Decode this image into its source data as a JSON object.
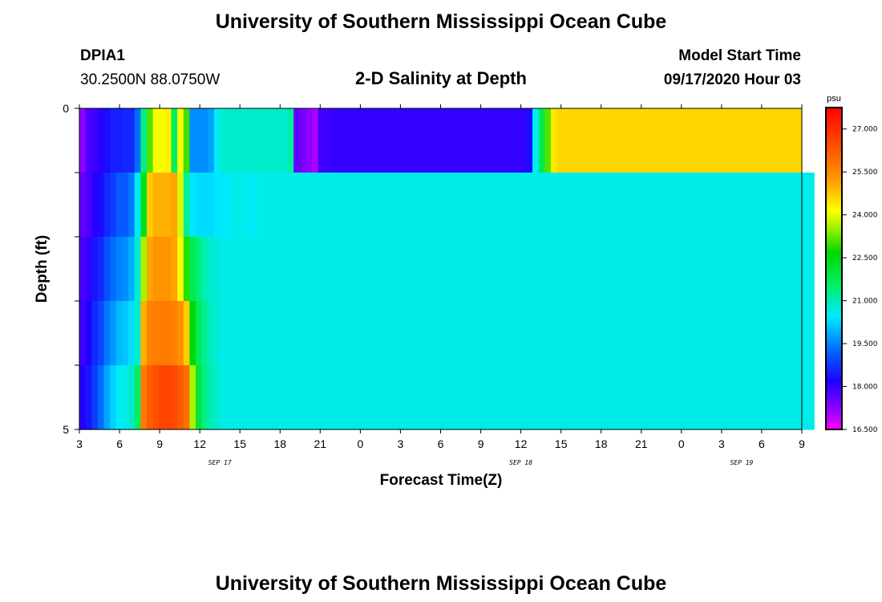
{
  "header": {
    "title": "University of Southern Mississippi Ocean Cube",
    "station_id": "DPIA1",
    "station_location": "30.2500N 88.0750W",
    "subtitle": "2-D Salinity at Depth",
    "model_start_label": "Model Start Time",
    "model_start_value": "09/17/2020 Hour 03"
  },
  "footer": {
    "title": "University of Southern Mississippi Ocean Cube"
  },
  "chart_data": {
    "type": "heatmap",
    "title": "2-D Salinity at Depth",
    "xlabel": "Forecast Time(Z)",
    "ylabel": "Depth (ft)",
    "x_hours_from_start": [
      0,
      54
    ],
    "x_tick_labels": [
      "3",
      "6",
      "9",
      "12",
      "15",
      "18",
      "21",
      "0",
      "3",
      "6",
      "9",
      "12",
      "15",
      "18",
      "21",
      "0",
      "3",
      "6",
      "9"
    ],
    "date_labels": [
      {
        "text": "SEP 17",
        "at_hour": 10.5
      },
      {
        "text": "SEP 18",
        "at_hour": 33
      },
      {
        "text": "SEP 19",
        "at_hour": 49.5
      }
    ],
    "y_tick_labels": [
      "0",
      "5"
    ],
    "ylim": [
      0,
      5
    ],
    "depth_levels": 5,
    "colorbar": {
      "unit": "psu",
      "min": 16.5,
      "max": 27.75,
      "ticks": [
        "27.000",
        "25.500",
        "24.000",
        "22.500",
        "21.000",
        "19.500",
        "18.000",
        "16.500"
      ]
    },
    "salinity_psu": [
      [
        17.2,
        17.8,
        17.9,
        18.1,
        18.3,
        18.5,
        18.5,
        18.6,
        18.6,
        19.3,
        21.3,
        23.1,
        24.1,
        24.1,
        24.3,
        21.6,
        24.1,
        23.0,
        19.6,
        19.6,
        19.6,
        19.8,
        20.5,
        20.8,
        20.8,
        20.8,
        20.8,
        20.8,
        20.8,
        20.8,
        20.8,
        20.8,
        20.8,
        20.8,
        21.1,
        17.6,
        17.4,
        17.2,
        17.0,
        17.9,
        17.9,
        18.0,
        18.0,
        18.0,
        18.0,
        18.0,
        18.0,
        18.0,
        18.0,
        18.0,
        18.0,
        18.0,
        18.0,
        18.0,
        18.0,
        18.0,
        18.0,
        18.0,
        18.0,
        18.0,
        18.0,
        18.0,
        18.0,
        18.0,
        18.0,
        18.0,
        18.0,
        18.0,
        18.0,
        18.0,
        18.0,
        18.0,
        18.0,
        18.3,
        20.5,
        21.8,
        23.1,
        24.4,
        24.6,
        24.6,
        24.6,
        24.6,
        24.6,
        24.6,
        24.6,
        24.6,
        24.6,
        24.6,
        24.6,
        24.6,
        24.6,
        24.6,
        24.6,
        24.6,
        24.6,
        24.6,
        24.6,
        24.6,
        24.6,
        24.6,
        24.6,
        24.6,
        24.6,
        24.6,
        24.6,
        24.6,
        24.6,
        24.6,
        24.6,
        24.6,
        24.6,
        24.6,
        24.6,
        24.6,
        24.6,
        24.6,
        24.6,
        24.6
      ],
      [
        17.6,
        17.8,
        18.1,
        18.3,
        18.6,
        18.8,
        19.1,
        19.1,
        19.4,
        20.5,
        22.3,
        24.7,
        25.0,
        25.0,
        25.0,
        25.1,
        23.9,
        21.2,
        20.4,
        20.3,
        20.3,
        20.3,
        20.4,
        20.4,
        20.5,
        20.6,
        20.6,
        20.5,
        20.5,
        20.6,
        20.6,
        20.6,
        20.6,
        20.6,
        20.6,
        20.6,
        20.6,
        20.6,
        20.6,
        20.6,
        20.6,
        20.6,
        20.6,
        20.6,
        20.6,
        20.6,
        20.6,
        20.6,
        20.6,
        20.6,
        20.6,
        20.6,
        20.6,
        20.6,
        20.6,
        20.6,
        20.6,
        20.6,
        20.6,
        20.6,
        20.6,
        20.6,
        20.6,
        20.6,
        20.6,
        20.6,
        20.6,
        20.6,
        20.6,
        20.6,
        20.6,
        20.6,
        20.6,
        20.6,
        20.6,
        20.6,
        20.6,
        20.6,
        20.6,
        20.6,
        20.6,
        20.6,
        20.6,
        20.6,
        20.6,
        20.6,
        20.6,
        20.6,
        20.6,
        20.6,
        20.6,
        20.6,
        20.6,
        20.6,
        20.6,
        20.6,
        20.6,
        20.6,
        20.6,
        20.6,
        20.6,
        20.6,
        20.6,
        20.6,
        20.6,
        20.6,
        20.6,
        20.6,
        20.6,
        20.6,
        20.6,
        20.6,
        20.6,
        20.6,
        20.6,
        20.6,
        20.6,
        20.6,
        20.6,
        20.6
      ],
      [
        17.8,
        18.0,
        18.4,
        18.6,
        19.0,
        19.3,
        19.5,
        19.6,
        19.9,
        20.7,
        23.6,
        25.1,
        25.3,
        25.3,
        25.3,
        25.1,
        24.1,
        22.9,
        21.8,
        21.4,
        21.0,
        20.8,
        20.7,
        20.6,
        20.6,
        20.6,
        20.6,
        20.6,
        20.6,
        20.6,
        20.6,
        20.6,
        20.6,
        20.6,
        20.6,
        20.6,
        20.6,
        20.6,
        20.6,
        20.6,
        20.6,
        20.6,
        20.6,
        20.6,
        20.6,
        20.6,
        20.6,
        20.6,
        20.6,
        20.6,
        20.6,
        20.6,
        20.6,
        20.6,
        20.6,
        20.6,
        20.6,
        20.6,
        20.6,
        20.6,
        20.6,
        20.6,
        20.6,
        20.6,
        20.6,
        20.6,
        20.6,
        20.6,
        20.6,
        20.6,
        20.6,
        20.6,
        20.6,
        20.6,
        20.6,
        20.6,
        20.6,
        20.6,
        20.6,
        20.6,
        20.6,
        20.6,
        20.6,
        20.6,
        20.6,
        20.6,
        20.6,
        20.6,
        20.6,
        20.6,
        20.6,
        20.6,
        20.6,
        20.6,
        20.6,
        20.6,
        20.6,
        20.6,
        20.6,
        20.6,
        20.6,
        20.6,
        20.6,
        20.6,
        20.6,
        20.6,
        20.6,
        20.6,
        20.6,
        20.6,
        20.6,
        20.6,
        20.6,
        20.6,
        20.6,
        20.6,
        20.6,
        20.6,
        20.6,
        20.6
      ],
      [
        17.9,
        18.2,
        18.6,
        18.9,
        19.4,
        19.7,
        20.0,
        20.1,
        20.3,
        20.8,
        25.0,
        25.6,
        25.7,
        25.7,
        25.7,
        25.6,
        25.4,
        24.7,
        22.6,
        21.7,
        21.2,
        20.9,
        20.7,
        20.6,
        20.6,
        20.6,
        20.6,
        20.6,
        20.6,
        20.6,
        20.6,
        20.6,
        20.6,
        20.6,
        20.6,
        20.6,
        20.6,
        20.6,
        20.6,
        20.6,
        20.6,
        20.6,
        20.6,
        20.6,
        20.6,
        20.6,
        20.6,
        20.6,
        20.6,
        20.6,
        20.6,
        20.6,
        20.6,
        20.6,
        20.6,
        20.6,
        20.6,
        20.6,
        20.6,
        20.6,
        20.6,
        20.6,
        20.6,
        20.6,
        20.6,
        20.6,
        20.6,
        20.6,
        20.6,
        20.6,
        20.6,
        20.6,
        20.6,
        20.6,
        20.6,
        20.6,
        20.6,
        20.6,
        20.6,
        20.6,
        20.6,
        20.6,
        20.6,
        20.6,
        20.6,
        20.6,
        20.6,
        20.6,
        20.6,
        20.6,
        20.6,
        20.6,
        20.6,
        20.6,
        20.6,
        20.6,
        20.6,
        20.6,
        20.6,
        20.6,
        20.6,
        20.6,
        20.6,
        20.6,
        20.6,
        20.6,
        20.6,
        20.6,
        20.6,
        20.6,
        20.6,
        20.6,
        20.6,
        20.6,
        20.6,
        20.6,
        20.6,
        20.6,
        20.6,
        20.6
      ],
      [
        18.1,
        18.4,
        18.8,
        19.3,
        19.8,
        20.2,
        20.5,
        20.6,
        20.8,
        21.6,
        25.7,
        26.2,
        26.4,
        26.6,
        26.6,
        26.5,
        26.2,
        25.9,
        23.6,
        22.0,
        21.3,
        21.0,
        20.8,
        20.6,
        20.6,
        20.6,
        20.6,
        20.6,
        20.6,
        20.6,
        20.6,
        20.6,
        20.6,
        20.6,
        20.6,
        20.6,
        20.6,
        20.6,
        20.6,
        20.6,
        20.6,
        20.6,
        20.6,
        20.6,
        20.6,
        20.6,
        20.6,
        20.6,
        20.6,
        20.6,
        20.6,
        20.6,
        20.6,
        20.6,
        20.6,
        20.6,
        20.6,
        20.6,
        20.6,
        20.6,
        20.6,
        20.6,
        20.6,
        20.6,
        20.6,
        20.6,
        20.6,
        20.6,
        20.6,
        20.6,
        20.6,
        20.6,
        20.6,
        20.6,
        20.6,
        20.6,
        20.6,
        20.6,
        20.6,
        20.6,
        20.6,
        20.6,
        20.6,
        20.6,
        20.6,
        20.6,
        20.6,
        20.6,
        20.6,
        20.6,
        20.6,
        20.6,
        20.6,
        20.6,
        20.6,
        20.6,
        20.6,
        20.6,
        20.6,
        20.6,
        20.6,
        20.6,
        20.6,
        20.6,
        20.6,
        20.6,
        20.6,
        20.6,
        20.6,
        20.6,
        20.6,
        20.6,
        20.6,
        20.6,
        20.6,
        20.6,
        20.6,
        20.6,
        20.6,
        20.6
      ]
    ]
  }
}
